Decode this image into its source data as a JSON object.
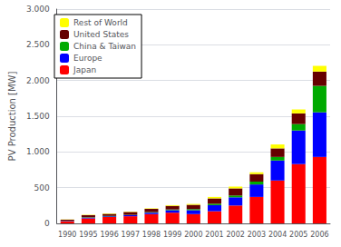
{
  "chart_data": {
    "type": "bar",
    "stacked": true,
    "categories": [
      "1990",
      "1995",
      "1996",
      "1997",
      "1998",
      "1999",
      "2000",
      "2001",
      "2002",
      "2003",
      "2004",
      "2005",
      "2006"
    ],
    "series": [
      {
        "name": "Japan",
        "color": "#ff0000",
        "values": [
          30,
          70,
          90,
          100,
          130,
          150,
          130,
          170,
          250,
          370,
          600,
          830,
          930
        ]
      },
      {
        "name": "Europe",
        "color": "#0000ff",
        "values": [
          5,
          10,
          10,
          15,
          20,
          35,
          55,
          85,
          115,
          175,
          280,
          470,
          625
        ]
      },
      {
        "name": "China & Taiwan",
        "color": "#00aa00",
        "values": [
          2,
          5,
          5,
          5,
          8,
          10,
          15,
          20,
          25,
          40,
          50,
          90,
          370
        ]
      },
      {
        "name": "United States",
        "color": "#660000",
        "values": [
          15,
          30,
          30,
          40,
          45,
          50,
          60,
          75,
          100,
          105,
          120,
          150,
          200
        ]
      },
      {
        "name": "Rest of World",
        "color": "#ffff00",
        "values": [
          3,
          5,
          5,
          5,
          7,
          10,
          12,
          20,
          25,
          25,
          55,
          55,
          80
        ]
      }
    ],
    "ylabel": "PV Production [MW]",
    "ylim": [
      0,
      3000
    ],
    "yticks": [
      0,
      500,
      {
        "value": 1000,
        "label": "1.000"
      },
      {
        "value": 1500,
        "label": "1.500"
      },
      {
        "value": 2000,
        "label": "2.000"
      },
      {
        "value": 2500,
        "label": "2.500"
      },
      {
        "value": 3000,
        "label": "3.000"
      }
    ],
    "grid": true,
    "legend": "upper left"
  }
}
